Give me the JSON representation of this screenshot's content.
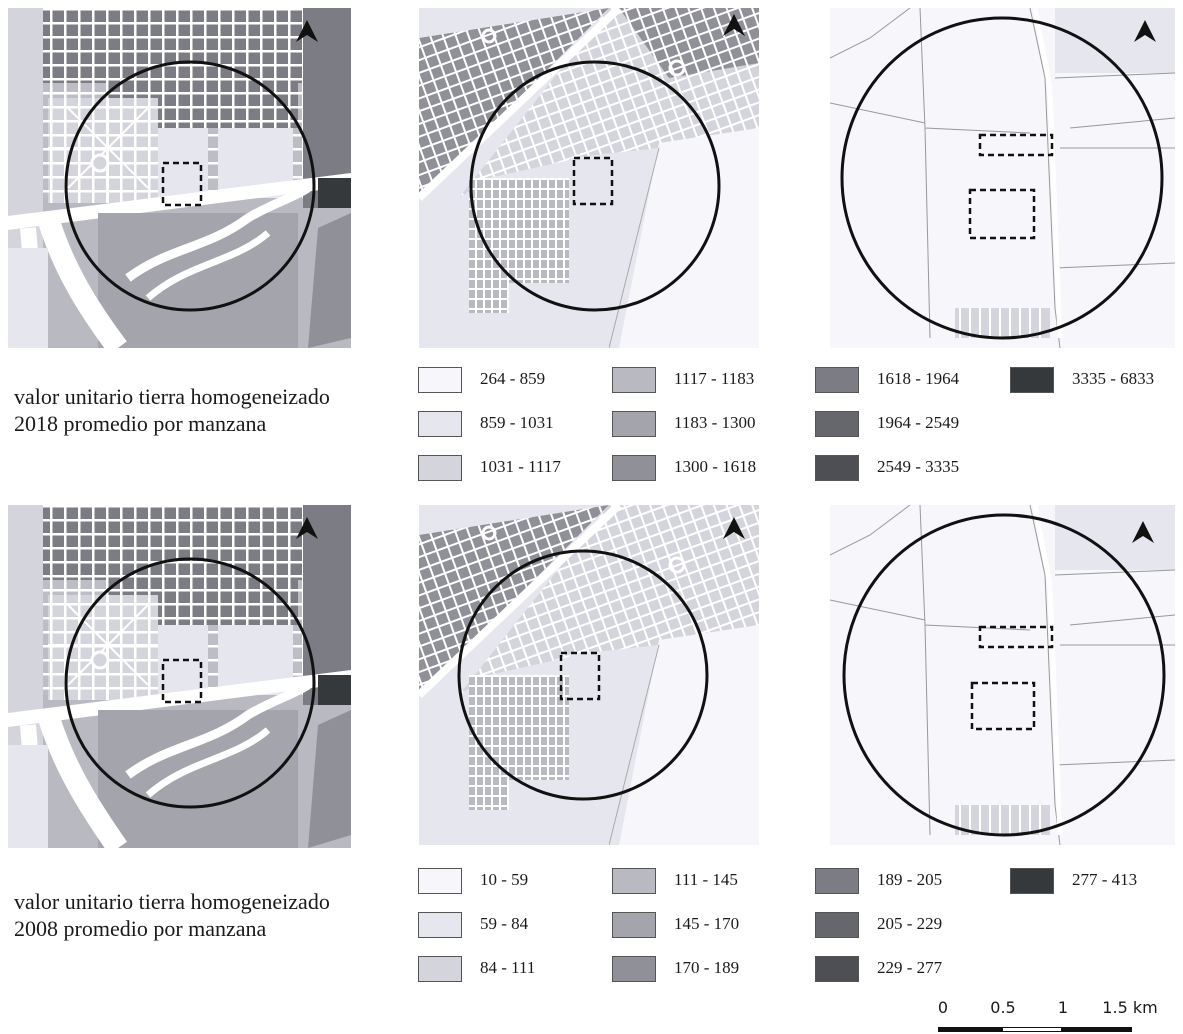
{
  "maps_2018": {
    "legend_title_line1": "valor unitario tierra homogeneizado",
    "legend_title_line2": "2018 promedio por manzana",
    "classes": [
      {
        "label": "264 - 859",
        "color": "#f6f6fb"
      },
      {
        "label": "859 - 1031",
        "color": "#e6e6ee"
      },
      {
        "label": "1031 - 1117",
        "color": "#d4d4dc"
      },
      {
        "label": "1117 - 1183",
        "color": "#b9b9c1"
      },
      {
        "label": "1183 - 1300",
        "color": "#a4a4ac"
      },
      {
        "label": "1300 - 1618",
        "color": "#909098"
      },
      {
        "label": "1618 - 1964",
        "color": "#7c7c84"
      },
      {
        "label": "1964 - 2549",
        "color": "#66666d"
      },
      {
        "label": "2549 - 3335",
        "color": "#4e4e55"
      },
      {
        "label": "3335 - 6833",
        "color": "#36393c"
      }
    ]
  },
  "maps_2008": {
    "legend_title_line1": "valor unitario tierra homogeneizado",
    "legend_title_line2": "2008 promedio por manzana",
    "classes": [
      {
        "label": "10 - 59",
        "color": "#f6f6fb"
      },
      {
        "label": "59 - 84",
        "color": "#e6e6ee"
      },
      {
        "label": "84 - 111",
        "color": "#d4d4dc"
      },
      {
        "label": "111 - 145",
        "color": "#b9b9c1"
      },
      {
        "label": "145 - 170",
        "color": "#a4a4ac"
      },
      {
        "label": "170 - 189",
        "color": "#909098"
      },
      {
        "label": "189 - 205",
        "color": "#7c7c84"
      },
      {
        "label": "205 - 229",
        "color": "#66666d"
      },
      {
        "label": "229 - 277",
        "color": "#4e4e55"
      },
      {
        "label": "277 - 413",
        "color": "#36393c"
      }
    ]
  },
  "scalebar": {
    "labels": [
      "0",
      "0.5",
      "1",
      "1.5 km"
    ]
  },
  "icons": {
    "north_arrow": "north-arrow-icon"
  }
}
